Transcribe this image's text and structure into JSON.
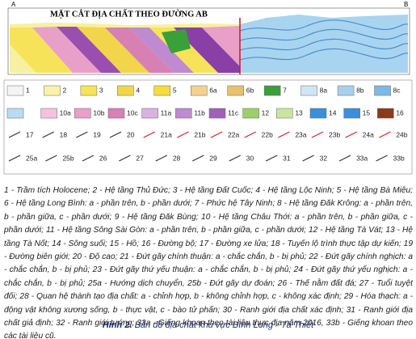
{
  "section": {
    "title": "MẶT CẮT ĐỊA CHẤT THEO ĐƯỜNG AB",
    "left_end": "A",
    "right_end": "B"
  },
  "legend": {
    "rows": [
      [
        {
          "label": "1",
          "color": "#f4f4f4"
        },
        {
          "label": "2",
          "color": "#fbf2a8"
        },
        {
          "label": "3",
          "color": "#f6e35a"
        },
        {
          "label": "4",
          "color": "#f2d54a"
        },
        {
          "label": "5",
          "color": "#f7dc3c"
        },
        {
          "label": "6a",
          "color": "#f5d28a"
        },
        {
          "label": "6b",
          "color": "#e9c16a"
        },
        {
          "label": "7",
          "color": "#3aa03a"
        },
        {
          "label": "8a",
          "color": "#cfe6f5"
        },
        {
          "label": "8b",
          "color": "#a7d0ee"
        },
        {
          "label": "8c",
          "color": "#7fb8e6"
        }
      ],
      [
        {
          "color": "#b9dcf2"
        },
        {
          "label": "10a",
          "color": "#f4c2dc"
        },
        {
          "label": "10b",
          "color": "#e8a0c8"
        },
        {
          "label": "10c",
          "color": "#d780b4"
        },
        {
          "label": "11a",
          "color": "#d9b2e0"
        },
        {
          "label": "11b",
          "color": "#bf8ad0"
        },
        {
          "label": "11c",
          "color": "#a060b8"
        },
        {
          "label": "12",
          "color": "#9ccf6a"
        },
        {
          "label": "13",
          "color": "#c9e6a0"
        },
        {
          "label": "14",
          "color": "#3b8fd8"
        },
        {
          "label": "15",
          "color": "#3b8fd8"
        },
        {
          "label": "16",
          "color": "#8b3a1a"
        }
      ],
      [
        {
          "label": "17",
          "color": "#333333"
        },
        {
          "label": "18",
          "color": "#333333"
        },
        {
          "label": "19",
          "color": "#333333"
        },
        {
          "label": "20",
          "color": "#333333"
        },
        {
          "label": "21a",
          "color": "#d0202a"
        },
        {
          "label": "21b",
          "color": "#d0202a"
        },
        {
          "label": "22a",
          "color": "#d0202a"
        },
        {
          "label": "22b",
          "color": "#d0202a"
        },
        {
          "label": "23a",
          "color": "#d0202a"
        },
        {
          "label": "23b",
          "color": "#d0202a"
        },
        {
          "label": "24a",
          "color": "#d0202a"
        },
        {
          "label": "24b",
          "color": "#d0202a"
        }
      ],
      [
        {
          "label": "25a",
          "color": "#333333"
        },
        {
          "label": "25b",
          "color": "#333333"
        },
        {
          "label": "26",
          "color": "#333333"
        },
        {
          "label": "27",
          "color": "#333333"
        },
        {
          "label": "28",
          "color": "#333333"
        },
        {
          "label": "29",
          "color": "#333333"
        },
        {
          "label": "30",
          "color": "#333333"
        },
        {
          "label": "31",
          "color": "#333333"
        },
        {
          "label": "32",
          "color": "#333333"
        },
        {
          "label": "33a",
          "color": "#333333"
        },
        {
          "label": "33b",
          "color": "#333333"
        }
      ]
    ]
  },
  "caption_text": "1 - Trầm tích Holocene; 2 - Hệ tầng Thủ Đức; 3 - Hệ tầng Đất Cuốc; 4 - Hệ tầng Lộc Ninh; 5 - Hệ tầng Bà Miêu; 6 - Hệ tầng Long Bình: a - phần trên, b - phần dưới; 7 - Phức hệ Tây Ninh; 8 - Hệ tầng Đăk Krông: a - phần trên, b - phần giữa, c - phần dưới; 9 - Hệ tầng Đăk Bùng; 10 - Hệ tầng Châu Thới: a - phần trên, b - phần giữa, c - phần dưới; 11 - Hệ tầng Sông Sài Gòn: a - phần trên, b - phần giữa, c - phần dưới; 12 - Hệ tầng Tà Vát; 13 - Hệ tầng Tà Nốt; 14 - Sông suối; 15 - Hồ; 16 - Đường bộ; 17 - Đường xe lửa; 18 - Tuyến lộ trình thực tập dự kiến; 19 - Đường biên giới; 20 - Độ cao; 21 - Đứt gãy chính thuận: a - chắc chắn, b - bị phủ; 22 - Đứt gãy chính nghịch: a - chắc chắn, b - bị phủ; 23 - Đứt gãy thứ yếu thuận: a - chắc chắn, b - bị phủ; 24 - Đứt gãy thứ yếu nghịch: a - chắc chắn, b - bị phủ; 25a - Hướng dịch chuyển, 25b - Đứt gãy dự đoán; 26 - Thế nằm đất đá; 27 - Tuổi tuyệt đối; 28 - Quan hệ thành tạo địa chất: a - chỉnh hợp, b - không chỉnh hợp, c - không xác định; 29 - Hóa thạch: a - động vật không xương sống, b - thực vật, c - bào tử phấn; 30 - Ranh giới địa chất xác định; 31 - Ranh giới địa chất giả định; 32 - Ranh giới tướng; 33a - Giếng khoan theo tài liệu thực địa năm 2016, 33b - Giếng khoan theo các tài liệu cũ.",
  "figure": {
    "label": "Hình 2.",
    "text": "Bản đồ địa chất khu vực Bình Long - Tà Thiết"
  }
}
